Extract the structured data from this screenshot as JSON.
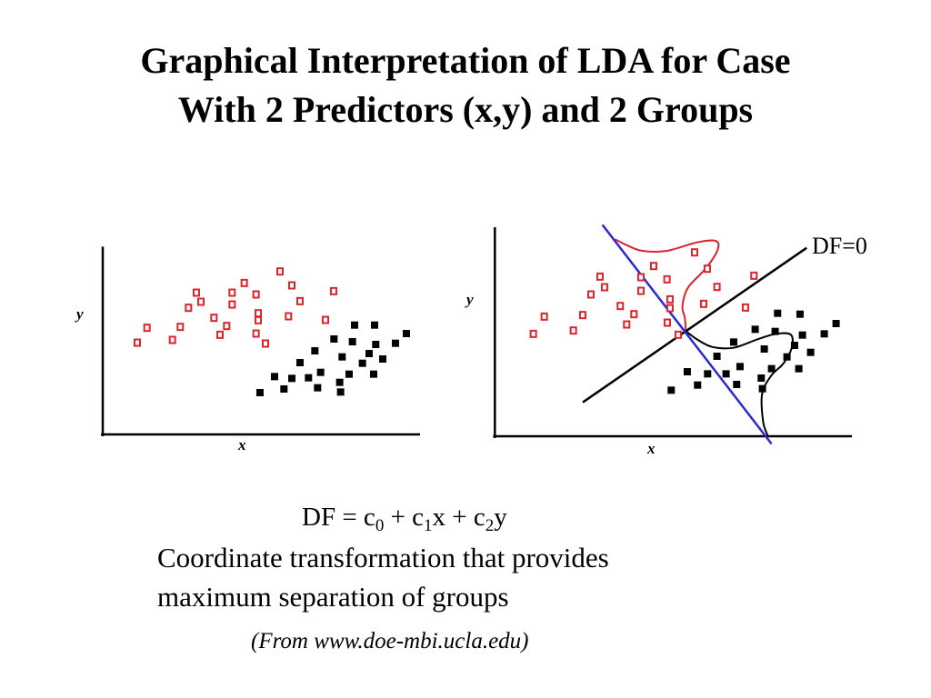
{
  "slide": {
    "title_line1": "Graphical Interpretation of LDA for Case",
    "title_line2": "With 2 Predictors (x,y) and 2 Groups",
    "formula": {
      "lhs": "DF = c",
      "s0": "0",
      "p1": " + c",
      "s1": "1",
      "p2": "x + c",
      "s2": "2",
      "p3": "y"
    },
    "desc_line1": "Coordinate transformation that provides",
    "desc_line2": "maximum separation of groups",
    "source": "(From www.doe-mbi.ucla.edu)"
  },
  "colors": {
    "group1": "#d9252b",
    "group2": "#000000",
    "discriminant_line": "#2a2ad0",
    "df_axis": "#000000"
  },
  "chart_data": [
    {
      "type": "scatter",
      "title": "",
      "xlabel": "x",
      "ylabel": "y",
      "xlim": [
        0,
        105
      ],
      "ylim": [
        0,
        62
      ],
      "grid": false,
      "series": [
        {
          "name": "group1",
          "marker": "hollow-square",
          "points": [
            [
              11.4,
              30.3
            ],
            [
              14.6,
              35.2
            ],
            [
              23,
              31.2
            ],
            [
              25.6,
              35.5
            ],
            [
              28.3,
              41.8
            ],
            [
              30.9,
              46.8
            ],
            [
              32.4,
              43.8
            ],
            [
              36.7,
              38.5
            ],
            [
              38.7,
              32.9
            ],
            [
              40.9,
              35.8
            ],
            [
              42.7,
              46.8
            ],
            [
              42.7,
              42.9
            ],
            [
              46.7,
              50
            ],
            [
              50.6,
              46.2
            ],
            [
              51.3,
              40
            ],
            [
              51.3,
              37.7
            ],
            [
              50.6,
              33.3
            ],
            [
              53.7,
              30
            ],
            [
              58.5,
              53.8
            ],
            [
              61.3,
              39
            ],
            [
              62.4,
              49.2
            ],
            [
              65.1,
              44
            ],
            [
              73.5,
              37.8
            ],
            [
              76.2,
              47.3
            ]
          ]
        },
        {
          "name": "group2",
          "marker": "filled-square",
          "points": [
            [
              51.9,
              13.8
            ],
            [
              56.7,
              19.1
            ],
            [
              59.8,
              15
            ],
            [
              62.4,
              18.5
            ],
            [
              65.1,
              23.7
            ],
            [
              67.9,
              18.7
            ],
            [
              70,
              27.6
            ],
            [
              70.9,
              15.4
            ],
            [
              71.9,
              20.5
            ],
            [
              76.3,
              31.5
            ],
            [
              78.2,
              17.2
            ],
            [
              78.5,
              14
            ],
            [
              79,
              25.6
            ],
            [
              81.3,
              19.9
            ],
            [
              82.4,
              30.6
            ],
            [
              83.1,
              36.1
            ],
            [
              85.7,
              23.5
            ],
            [
              87.9,
              26.7
            ],
            [
              89.4,
              19.9
            ],
            [
              89.7,
              36.1
            ],
            [
              90.1,
              29.7
            ],
            [
              92.4,
              24.9
            ],
            [
              96.6,
              30.1
            ],
            [
              100.2,
              33.3
            ]
          ]
        }
      ]
    },
    {
      "type": "scatter",
      "title": "",
      "xlabel": "x",
      "ylabel": "y",
      "xlim": [
        0,
        117.7
      ],
      "ylim": [
        0,
        69
      ],
      "grid": false,
      "series": [
        {
          "name": "group1",
          "marker": "hollow-square",
          "points": [
            [
              12.7,
              33.8
            ],
            [
              16.3,
              39.5
            ],
            [
              25.9,
              34.9
            ],
            [
              29,
              40
            ],
            [
              31.7,
              46.8
            ],
            [
              34.7,
              52.7
            ],
            [
              36.2,
              49.2
            ],
            [
              41.4,
              43
            ],
            [
              43.5,
              36.9
            ],
            [
              45.9,
              40.3
            ],
            [
              48.2,
              52.5
            ],
            [
              48.2,
              48
            ],
            [
              52.4,
              56.2
            ],
            [
              56.8,
              51.8
            ],
            [
              57.8,
              45.2
            ],
            [
              57.8,
              42.3
            ],
            [
              56.9,
              37.5
            ],
            [
              60.5,
              33.5
            ],
            [
              65.9,
              60.7
            ],
            [
              68.9,
              43.7
            ],
            [
              70.1,
              55.3
            ],
            [
              73.3,
              49.3
            ],
            [
              82.7,
              42.5
            ],
            [
              85.5,
              53
            ]
          ]
        },
        {
          "name": "group2",
          "marker": "filled-square",
          "points": [
            [
              58.2,
              15.2
            ],
            [
              63.5,
              21.3
            ],
            [
              66.9,
              16.9
            ],
            [
              70.2,
              20.6
            ],
            [
              73.3,
              26.4
            ],
            [
              76.3,
              20.6
            ],
            [
              78.8,
              31.1
            ],
            [
              79.8,
              17.1
            ],
            [
              80.9,
              23
            ],
            [
              85.9,
              35.3
            ],
            [
              87.9,
              19.2
            ],
            [
              88.3,
              15.7
            ],
            [
              88.9,
              28.8
            ],
            [
              91.3,
              22.3
            ],
            [
              92.5,
              34.6
            ],
            [
              93.3,
              40.6
            ],
            [
              96.4,
              26.2
            ],
            [
              98.9,
              30
            ],
            [
              100.3,
              22.3
            ],
            [
              100.7,
              40.3
            ],
            [
              101.5,
              33.4
            ],
            [
              104.2,
              27.7
            ],
            [
              108.7,
              33.8
            ],
            [
              112.6,
              37.2
            ]
          ]
        }
      ],
      "lines": [
        {
          "name": "df-axis",
          "label": "DF=0",
          "points": [
            [
              29,
              11.2
            ],
            [
              102.9,
              62.2
            ]
          ]
        },
        {
          "name": "discriminant-boundary",
          "points": [
            [
              35.5,
              69.8
            ],
            [
              91.3,
              -2.5
            ]
          ]
        }
      ],
      "curves": [
        {
          "name": "group1-distribution",
          "points": [
            [
              63,
              34.7
            ],
            [
              62.7,
              39
            ],
            [
              61.9,
              43
            ],
            [
              63.7,
              49
            ],
            [
              69.7,
              55.5
            ],
            [
              73.5,
              61.5
            ],
            [
              72.9,
              64.5
            ],
            [
              66.7,
              64
            ],
            [
              56.7,
              61.2
            ],
            [
              48.7,
              61.2
            ],
            [
              43.7,
              63
            ],
            [
              39.7,
              65
            ]
          ]
        },
        {
          "name": "group2-distribution",
          "points": [
            [
              63,
              34.7
            ],
            [
              66.7,
              32
            ],
            [
              71.7,
              29.5
            ],
            [
              78.7,
              29.2
            ],
            [
              86.7,
              32
            ],
            [
              92.7,
              33.8
            ],
            [
              97.7,
              33.5
            ],
            [
              97.9,
              29
            ],
            [
              95.2,
              24
            ],
            [
              91.2,
              20
            ],
            [
              88.2,
              14
            ],
            [
              88.5,
              5
            ],
            [
              90,
              0.2
            ]
          ]
        }
      ]
    }
  ]
}
